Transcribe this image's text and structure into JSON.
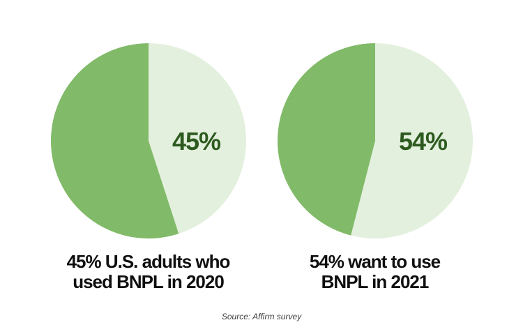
{
  "colors": {
    "background": "#ffffff",
    "slice_share": "#e3f0de",
    "slice_remainder": "#81ba68",
    "slice_label_text": "#2d5a1f",
    "caption_text": "#0f0f0f",
    "source_text": "#3d3d3d"
  },
  "chart_data": [
    {
      "type": "pie",
      "title": "45% U.S. adults who used BNPL in 2020",
      "start_angle_deg": 0,
      "direction": "clockwise",
      "center_label": "45%",
      "caption_lines": [
        "45% U.S. adults who",
        "used BNPL in 2020"
      ],
      "slices": [
        {
          "name": "share",
          "label": "45%",
          "value": 45,
          "color_key": "slice_share"
        },
        {
          "name": "remainder",
          "label": "",
          "value": 55,
          "color_key": "slice_remainder"
        }
      ]
    },
    {
      "type": "pie",
      "title": "54% want to use BNPL in 2021",
      "start_angle_deg": 0,
      "direction": "clockwise",
      "center_label": "54%",
      "caption_lines": [
        "54% want to use",
        "BNPL in 2021"
      ],
      "slices": [
        {
          "name": "share",
          "label": "54%",
          "value": 54,
          "color_key": "slice_share"
        },
        {
          "name": "remainder",
          "label": "",
          "value": 46,
          "color_key": "slice_remainder"
        }
      ]
    }
  ],
  "source": {
    "text": "Source: Affirm survey"
  }
}
